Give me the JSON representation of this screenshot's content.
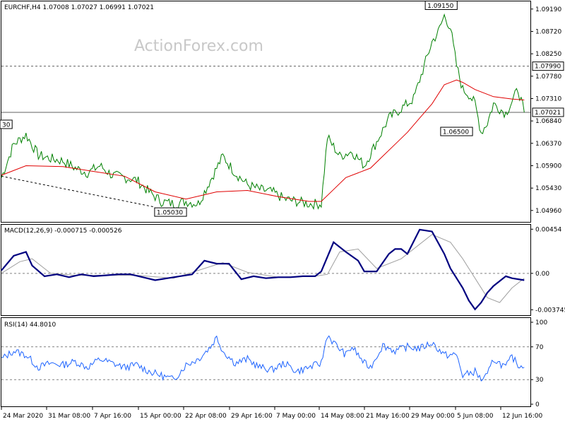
{
  "watermark": "ActionForex.com",
  "chart_data": [
    {
      "type": "line",
      "panel": "price",
      "header": "EURCHF,H4  1.07008 1.07027 1.06991 1.07021",
      "ylim": [
        1.0472,
        1.0935
      ],
      "y_ticks": [
        "1.09190",
        "1.08720",
        "1.08250",
        "1.07780",
        "1.07310",
        "1.06840",
        "1.06370",
        "1.05900",
        "1.05430",
        "1.04960"
      ],
      "hlines": [
        {
          "value": 1.0799,
          "label": "1.07990",
          "style": "dashed"
        },
        {
          "value": 1.07021,
          "label": "1.07021",
          "style": "solid"
        }
      ],
      "annotations": [
        {
          "label": "1.09150",
          "x": 143,
          "value": 1.0915
        },
        {
          "label": "1.06500",
          "x": 148,
          "value": 1.065
        },
        {
          "label": "1.05030",
          "x": 55,
          "value": 1.0503
        },
        {
          "label": "30",
          "x": 0,
          "value": 1.0665
        }
      ],
      "trendline": {
        "from": [
          0,
          1.0568
        ],
        "to": [
          50,
          1.0503
        ]
      },
      "price_x": [
        0,
        4,
        8,
        12,
        16,
        20,
        24,
        28,
        32,
        36,
        40,
        44,
        48,
        52,
        56,
        60,
        64,
        68,
        72,
        76,
        80,
        84,
        88,
        92,
        96,
        100,
        104,
        106,
        110,
        114,
        118,
        122,
        126,
        130,
        134,
        138,
        140,
        142,
        144,
        146,
        148,
        150,
        152,
        154,
        156,
        158,
        160,
        164,
        168,
        170
      ],
      "price": [
        1.0565,
        1.0635,
        1.0655,
        1.0612,
        1.0605,
        1.06,
        1.0585,
        1.0575,
        1.059,
        1.057,
        1.0565,
        1.056,
        1.0535,
        1.0515,
        1.051,
        1.0515,
        1.051,
        1.056,
        1.061,
        1.0575,
        1.055,
        1.054,
        1.0535,
        1.052,
        1.0515,
        1.051,
        1.051,
        1.065,
        1.061,
        1.062,
        1.059,
        1.064,
        1.069,
        1.071,
        1.073,
        1.081,
        1.085,
        1.087,
        1.0905,
        1.088,
        1.08,
        1.075,
        1.074,
        1.072,
        1.066,
        1.068,
        1.072,
        1.07,
        1.075,
        1.0702
      ],
      "ma_x": [
        0,
        8,
        20,
        30,
        40,
        50,
        60,
        70,
        80,
        90,
        100,
        104,
        108,
        112,
        116,
        120,
        124,
        128,
        132,
        136,
        140,
        144,
        148,
        150,
        154,
        160,
        166,
        170
      ],
      "ma": [
        1.057,
        1.059,
        1.0588,
        1.0578,
        1.0568,
        1.0535,
        1.052,
        1.0535,
        1.0538,
        1.0525,
        1.0515,
        1.0515,
        1.054,
        1.0565,
        1.0575,
        1.0585,
        1.061,
        1.0635,
        1.066,
        1.069,
        1.072,
        1.076,
        1.077,
        1.0765,
        1.075,
        1.0735,
        1.073,
        1.0728
      ]
    },
    {
      "type": "line",
      "panel": "macd",
      "header": "MACD(12,26,9) -0.000715 -0.000526",
      "ylim": [
        -0.0043,
        0.005
      ],
      "y_ticks": [
        "0.00454",
        "0.00",
        "-0.003745"
      ],
      "zero_line": 0,
      "macd_x": [
        0,
        4,
        8,
        10,
        14,
        18,
        22,
        26,
        30,
        34,
        38,
        42,
        46,
        50,
        54,
        58,
        62,
        66,
        70,
        74,
        78,
        82,
        86,
        90,
        94,
        98,
        102,
        104,
        108,
        112,
        116,
        118,
        122,
        126,
        128,
        130,
        132,
        136,
        140,
        144,
        146,
        148,
        150,
        152,
        154,
        156,
        158,
        160,
        164,
        166,
        170
      ],
      "macd": [
        0.0003,
        0.0018,
        0.0022,
        0.0008,
        -0.0003,
        -0.0001,
        -0.0004,
        -0.0001,
        -0.0003,
        -0.0002,
        -0.0001,
        -0.0001,
        -0.0004,
        -0.0007,
        -0.0005,
        -0.0003,
        -0.0001,
        0.0013,
        0.001,
        0.001,
        -0.0006,
        -0.0003,
        -0.0005,
        -0.0004,
        -0.0004,
        -0.0003,
        -0.0003,
        0.0002,
        0.0032,
        0.0022,
        0.0013,
        0.0002,
        0.0002,
        0.002,
        0.0025,
        0.0025,
        0.002,
        0.0045,
        0.0043,
        0.002,
        0.0005,
        -0.0005,
        -0.0015,
        -0.0028,
        -0.0037,
        -0.003,
        -0.002,
        -0.0013,
        -0.0003,
        -0.0005,
        -0.0007
      ],
      "signal_x": [
        0,
        6,
        10,
        16,
        24,
        32,
        44,
        56,
        66,
        72,
        80,
        90,
        102,
        106,
        110,
        116,
        122,
        130,
        140,
        146,
        150,
        154,
        158,
        162,
        166,
        170
      ],
      "signal": [
        0.0,
        0.0012,
        0.0015,
        0.0,
        -0.0002,
        -0.0002,
        -0.0002,
        -0.0005,
        0.0005,
        0.0011,
        0.0001,
        -0.0004,
        -0.0003,
        -0.0001,
        0.0022,
        0.0025,
        0.0005,
        0.0015,
        0.004,
        0.0032,
        0.0015,
        -0.0005,
        -0.0025,
        -0.003,
        -0.0015,
        -0.0005
      ]
    },
    {
      "type": "line",
      "panel": "rsi",
      "header": "RSI(14) 44.8010",
      "ylim": [
        0,
        100
      ],
      "y_ticks": [
        "100",
        "70",
        "30",
        "0"
      ],
      "levels": [
        70,
        30
      ],
      "rsi_x": [
        0,
        4,
        8,
        12,
        16,
        20,
        24,
        28,
        32,
        36,
        40,
        44,
        48,
        52,
        56,
        60,
        64,
        68,
        70,
        72,
        76,
        80,
        84,
        88,
        92,
        96,
        100,
        104,
        106,
        108,
        112,
        114,
        118,
        120,
        124,
        128,
        132,
        136,
        140,
        144,
        148,
        150,
        154,
        156,
        158,
        160,
        164,
        166,
        168,
        170
      ],
      "rsi": [
        55,
        65,
        60,
        45,
        50,
        48,
        52,
        45,
        55,
        50,
        45,
        48,
        40,
        35,
        30,
        48,
        55,
        70,
        82,
        65,
        50,
        55,
        45,
        42,
        50,
        40,
        45,
        50,
        85,
        75,
        60,
        70,
        50,
        45,
        72,
        65,
        70,
        68,
        75,
        60,
        60,
        35,
        40,
        30,
        35,
        55,
        45,
        58,
        48,
        45
      ],
      "x_tick_labels": [
        "24 Mar 2020",
        "31 Mar 08:00",
        "7 Apr 16:00",
        "15 Apr 00:00",
        "22 Apr 08:00",
        "29 Apr 16:00",
        "7 May 00:00",
        "14 May 08:00",
        "21 May 16:00",
        "29 May 00:00",
        "5 Jun 08:00",
        "12 Jun 16:00"
      ]
    }
  ]
}
